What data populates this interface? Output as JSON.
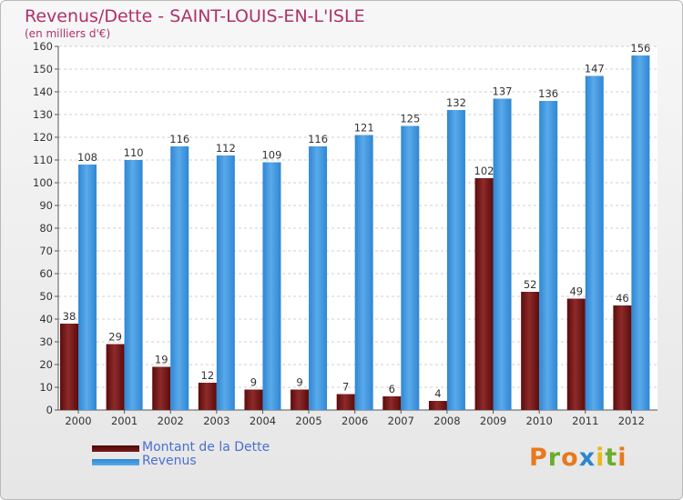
{
  "title": "Revenus/Dette - SAINT-LOUIS-EN-L'ISLE",
  "subtitle": "(en milliers d'€)",
  "colors": {
    "dette": "#7a1b1b",
    "revenus": "#3f95dc",
    "title": "#b0306a"
  },
  "logo": {
    "letters": [
      "P",
      "r",
      "o",
      "x",
      "i",
      "t",
      "i"
    ],
    "colors": [
      "#e8791d",
      "#6aad2c",
      "#e8791d",
      "#2b86cf",
      "#e8b81d",
      "#6aad2c",
      "#e8791d"
    ]
  },
  "chart_data": {
    "type": "bar",
    "categories": [
      "2000",
      "2001",
      "2002",
      "2003",
      "2004",
      "2005",
      "2006",
      "2007",
      "2008",
      "2009",
      "2010",
      "2011",
      "2012"
    ],
    "series": [
      {
        "name": "Montant de la Dette",
        "color": "#7a1b1b",
        "values": [
          38,
          29,
          19,
          12,
          9,
          9,
          7,
          6,
          4,
          102,
          52,
          49,
          46
        ]
      },
      {
        "name": "Revenus",
        "color": "#3f95dc",
        "values": [
          108,
          110,
          116,
          112,
          109,
          116,
          121,
          125,
          132,
          137,
          136,
          147,
          156
        ]
      }
    ],
    "ylim": [
      0,
      160
    ],
    "yticks": [
      0,
      10,
      20,
      30,
      40,
      50,
      60,
      70,
      80,
      90,
      100,
      110,
      120,
      130,
      140,
      150,
      160
    ],
    "grid": true,
    "legend_position": "bottom-left"
  }
}
